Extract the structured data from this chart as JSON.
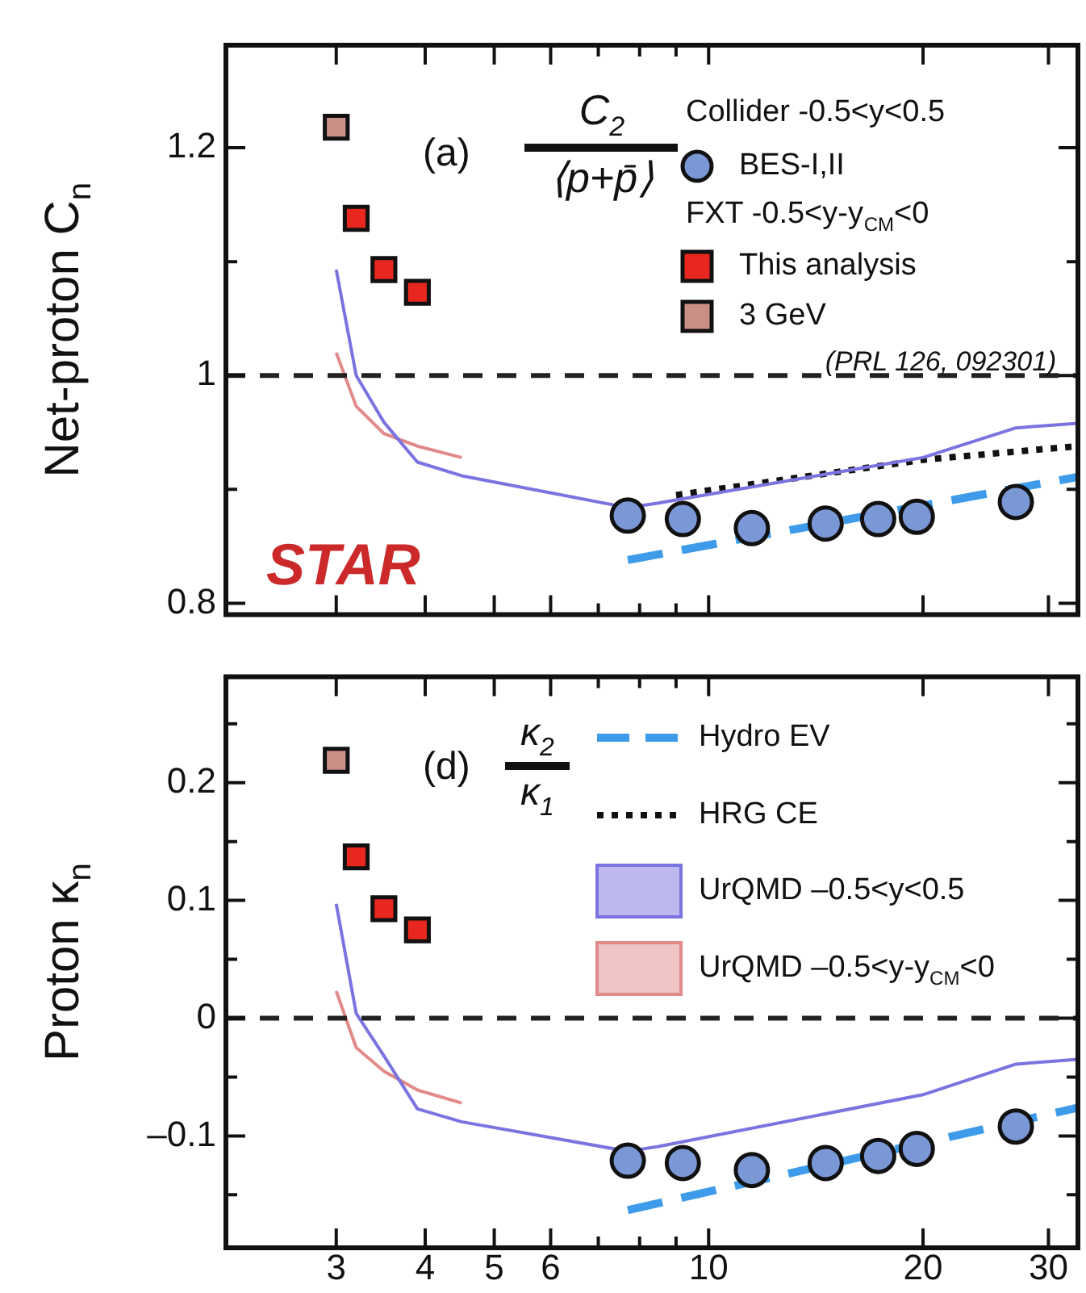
{
  "chart_data": [
    {
      "type": "scatter",
      "ylabel": "Net-proton C$_{n}$",
      "legend_title": "Collider -0.5<y<0.5",
      "legend": "top right",
      "log": "x",
      "grid": false,
      "tick_labels": "y",
      "xlim": [
        2.1,
        33
      ],
      "xticks": [
        3,
        4,
        5,
        6,
        {
          "value": 7,
          "label": null
        },
        {
          "value": 8,
          "label": null
        },
        {
          "value": 9,
          "label": null
        },
        10,
        20,
        30
      ],
      "ylim": [
        0.79,
        1.29
      ],
      "yticks": [
        0.8,
        {
          "value": 0.9,
          "label": null
        },
        1,
        {
          "value": 1.1,
          "label": null
        },
        1.2
      ],
      "ref_lines": [
        {
          "axis": "y",
          "value": 1,
          "color": "#222222",
          "line_style": "dashed"
        }
      ],
      "annotations": [
        "(a)",
        "C$_{2}$",
        "⟨p+p̄⟩",
        "FXT -0.5<y-y$_{CM}$<0",
        "(PRL 126, 092301)",
        "STAR"
      ],
      "series": [
        {
          "type": "line",
          "color": "#7b73e0",
          "line_style": "solid",
          "marker": "none",
          "x": [
            3.0,
            3.2,
            3.5,
            3.9,
            4.5,
            7.7,
            8.5,
            20,
            27,
            33
          ],
          "values": [
            1.093,
            1.0,
            0.959,
            0.924,
            0.912,
            0.884,
            0.888,
            0.928,
            0.954,
            0.958
          ]
        },
        {
          "type": "line",
          "color": "#e08a8a",
          "line_style": "solid",
          "marker": "none",
          "x": [
            3.0,
            3.2,
            3.5,
            3.9,
            4.5
          ],
          "values": [
            1.02,
            0.973,
            0.949,
            0.938,
            0.928
          ]
        },
        {
          "type": "line",
          "color": "#3d9be9",
          "line_style": "dashed",
          "marker": "none",
          "x": [
            7.7,
            33
          ],
          "values": [
            0.838,
            0.911
          ]
        },
        {
          "type": "line",
          "color": "#111111",
          "line_style": "dotted",
          "marker": "none",
          "x": [
            9,
            20,
            33
          ],
          "values": [
            0.895,
            0.926,
            0.938
          ]
        },
        {
          "name": "BES-I,II",
          "type": "scatter",
          "color": "#7a98d6",
          "marker": "circle",
          "x": [
            7.7,
            9.2,
            11.5,
            14.6,
            17.3,
            19.6,
            27
          ],
          "values": [
            0.877,
            0.874,
            0.866,
            0.87,
            0.874,
            0.876,
            0.889
          ]
        },
        {
          "name": "This analysis",
          "type": "scatter",
          "color": "#e8281e",
          "marker": "square",
          "x": [
            3.2,
            3.5,
            3.9
          ],
          "values": [
            1.138,
            1.093,
            1.073
          ]
        },
        {
          "name": "3 GeV",
          "type": "scatter",
          "color": "#c98f86",
          "marker": "square",
          "x": [
            3.0
          ],
          "values": [
            1.218
          ]
        }
      ]
    },
    {
      "type": "scatter",
      "ylabel": "Proton κ$_{n}$",
      "legend": "top right",
      "log": "x",
      "grid": false,
      "xlim": [
        2.1,
        33
      ],
      "xticks": [
        3,
        4,
        5,
        6,
        {
          "value": 7,
          "label": null
        },
        {
          "value": 8,
          "label": null
        },
        {
          "value": 9,
          "label": null
        },
        10,
        20,
        30
      ],
      "ylim": [
        -0.195,
        0.29
      ],
      "yticks": [
        {
          "value": -0.15,
          "label": null
        },
        {
          "value": -0.1,
          "label": "–0.1"
        },
        {
          "value": -0.05,
          "label": null
        },
        0,
        {
          "value": 0.05,
          "label": null
        },
        0.1,
        {
          "value": 0.15,
          "label": null
        },
        0.2,
        {
          "value": 0.25,
          "label": null
        }
      ],
      "ref_lines": [
        {
          "axis": "y",
          "value": 0,
          "color": "#222222",
          "line_style": "dashed"
        }
      ],
      "annotations": [
        "(d)",
        "κ$_{2}$",
        "κ$_{1}$"
      ],
      "series": [
        {
          "name": "Hydro EV",
          "type": "line",
          "color": "#3d9be9",
          "line_style": "dashed",
          "marker": "none",
          "x": [
            7.7,
            33
          ],
          "values": [
            -0.163,
            -0.076
          ]
        },
        {
          "name": "HRG CE",
          "type": "line",
          "color": "#111111",
          "line_style": "dotted",
          "marker": "none"
        },
        {
          "name": "UrQMD –0.5<y<0.5",
          "type": "line",
          "color": "#7b73e0",
          "line_style": "solid",
          "marker": "none",
          "x": [
            3.0,
            3.2,
            3.5,
            3.9,
            4.5,
            7.7,
            8.5,
            20,
            27,
            33
          ],
          "values": [
            0.097,
            0.004,
            -0.032,
            -0.077,
            -0.088,
            -0.113,
            -0.109,
            -0.065,
            -0.039,
            -0.035
          ]
        },
        {
          "name": "UrQMD –0.5<y-y$_{CM}$<0",
          "type": "line",
          "color": "#e08a8a",
          "line_style": "solid",
          "marker": "none",
          "x": [
            3.0,
            3.2,
            3.5,
            3.9,
            4.5
          ],
          "values": [
            0.023,
            -0.025,
            -0.045,
            -0.061,
            -0.072
          ]
        },
        {
          "type": "scatter",
          "color": "#7a98d6",
          "marker": "circle",
          "x": [
            7.7,
            9.2,
            11.5,
            14.6,
            17.3,
            19.6,
            27
          ],
          "values": [
            -0.121,
            -0.123,
            -0.129,
            -0.123,
            -0.117,
            -0.111,
            -0.092
          ]
        },
        {
          "type": "scatter",
          "color": "#e8281e",
          "marker": "square",
          "x": [
            3.2,
            3.5,
            3.9
          ],
          "values": [
            0.137,
            0.093,
            0.075
          ]
        },
        {
          "type": "scatter",
          "color": "#c98f86",
          "marker": "square",
          "x": [
            3.0
          ],
          "values": [
            0.219
          ]
        }
      ]
    }
  ]
}
